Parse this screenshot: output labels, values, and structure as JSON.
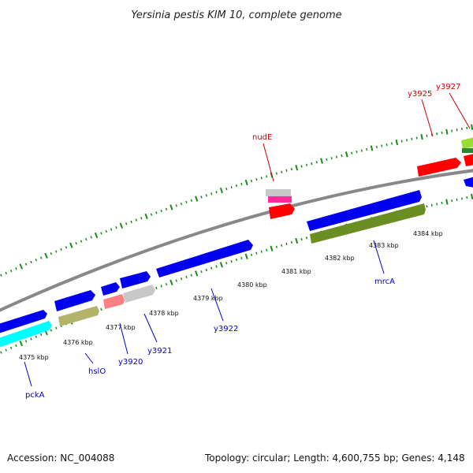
{
  "title": "Yersinia pestis KIM 10, complete genome",
  "footer": {
    "accession": "Accession: NC_004088",
    "summary": "Topology: circular; Length: 4,600,755 bp; Genes: 4,148"
  },
  "colors": {
    "backbone": "#888888",
    "tick": "#1a8a1a",
    "label_forward": "#cc0000",
    "label_reverse": "#0000cc"
  },
  "kbp_labels": [
    "4375 kbp",
    "4376 kbp",
    "4377 kbp",
    "4378 kbp",
    "4379 kbp",
    "4380 kbp",
    "4381 kbp",
    "4382 kbp",
    "4383 kbp",
    "4384 kbp"
  ],
  "genes": [
    {
      "id": "pckA",
      "label": "pckA",
      "strand": "reverse",
      "color": "#00ffff"
    },
    {
      "id": "hslO",
      "label": "hslO",
      "strand": "reverse",
      "color": "#b3b36b"
    },
    {
      "id": "y3920",
      "label": "y3920",
      "strand": "reverse",
      "color": "#ff8080"
    },
    {
      "id": "y3921",
      "label": "y3921",
      "strand": "reverse",
      "color": "#c8c8c8"
    },
    {
      "id": "y3922",
      "label": "y3922",
      "strand": "reverse",
      "color": "#0000ff"
    },
    {
      "id": "mrcA",
      "label": "mrcA",
      "strand": "reverse",
      "color": "#6b8e23"
    },
    {
      "id": "nudE",
      "label": "nudE",
      "strand": "forward",
      "color": "#ff0000"
    },
    {
      "id": "y3925",
      "label": "y3925",
      "strand": "forward",
      "color": "#ff0000"
    },
    {
      "id": "y3927",
      "label": "y3927",
      "strand": "forward",
      "color": "#99dd33"
    }
  ]
}
